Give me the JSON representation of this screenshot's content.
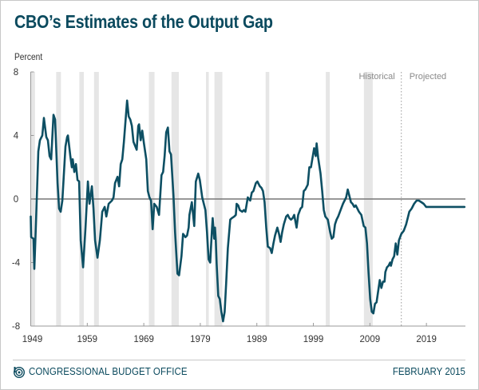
{
  "header": {
    "title": "CBO’s Estimates of the Output Gap",
    "unit_label": "Percent"
  },
  "footer": {
    "organization": "CONGRESSIONAL BUDGET OFFICE",
    "date": "FEBRUARY 2015",
    "logo_icon": "cbo-logo-icon"
  },
  "colors": {
    "title": "#0b4a5e",
    "line": "#0d4f63",
    "recession_band": "#e6e6e6",
    "zero_line": "#777777",
    "axis": "#999999",
    "divider": "#999999"
  },
  "chart_data": {
    "type": "line",
    "title": "CBO’s Estimates of the Output Gap",
    "xlabel": "",
    "ylabel": "Percent",
    "xlim": [
      1949,
      2025.9
    ],
    "ylim": [
      -8,
      8
    ],
    "y_ticks": [
      8,
      4,
      0,
      -4,
      -8
    ],
    "y_tick_labels": [
      "8",
      "4",
      "0",
      "-4",
      "-8"
    ],
    "x_ticks": [
      1949,
      1959,
      1969,
      1979,
      1989,
      1999,
      2009,
      2019
    ],
    "x_tick_labels": [
      "1949",
      "1959",
      "1969",
      "1979",
      "1989",
      "1999",
      "2009",
      "2019"
    ],
    "grid": false,
    "reference_line": 0,
    "divider": {
      "x": 2014.56,
      "left_label": "Historical",
      "right_label": "Projected"
    },
    "recession_bands": [
      [
        1949.0,
        1949.75
      ],
      [
        1953.5,
        1954.35
      ],
      [
        1957.6,
        1958.4
      ],
      [
        1960.2,
        1961.05
      ],
      [
        1969.9,
        1970.9
      ],
      [
        1973.9,
        1975.2
      ],
      [
        1980.0,
        1980.5
      ],
      [
        1981.5,
        1982.9
      ],
      [
        1990.55,
        1991.2
      ],
      [
        2001.2,
        2001.9
      ],
      [
        2007.95,
        2009.5
      ]
    ],
    "series": [
      {
        "name": "Output Gap",
        "points": [
          [
            1949.0,
            -1.1
          ],
          [
            1949.07,
            -2.4
          ],
          [
            1949.5,
            -2.5
          ],
          [
            1949.64,
            -4.4
          ],
          [
            1949.92,
            -1.6
          ],
          [
            1950.34,
            3.0
          ],
          [
            1950.63,
            3.7
          ],
          [
            1951.05,
            4.0
          ],
          [
            1951.33,
            5.1
          ],
          [
            1951.76,
            3.9
          ],
          [
            1952.04,
            3.7
          ],
          [
            1952.33,
            2.7
          ],
          [
            1952.61,
            2.5
          ],
          [
            1953.03,
            5.3
          ],
          [
            1953.31,
            5.0
          ],
          [
            1953.74,
            1.0
          ],
          [
            1954.02,
            -0.6
          ],
          [
            1954.3,
            -0.8
          ],
          [
            1954.59,
            -0.1
          ],
          [
            1955.15,
            3.3
          ],
          [
            1955.44,
            3.9
          ],
          [
            1955.58,
            4.0
          ],
          [
            1956.0,
            2.7
          ],
          [
            1956.28,
            2.0
          ],
          [
            1956.43,
            2.5
          ],
          [
            1956.71,
            1.7
          ],
          [
            1956.99,
            2.2
          ],
          [
            1957.27,
            1.2
          ],
          [
            1957.56,
            1.1
          ],
          [
            1957.84,
            -2.6
          ],
          [
            1958.26,
            -4.3
          ],
          [
            1958.69,
            -1.8
          ],
          [
            1959.11,
            1.1
          ],
          [
            1959.4,
            -0.3
          ],
          [
            1959.82,
            0.8
          ],
          [
            1960.1,
            -0.6
          ],
          [
            1960.39,
            -2.6
          ],
          [
            1960.81,
            -3.7
          ],
          [
            1961.23,
            -2.6
          ],
          [
            1961.66,
            -0.8
          ],
          [
            1962.08,
            -0.5
          ],
          [
            1962.37,
            -1.1
          ],
          [
            1962.79,
            -0.3
          ],
          [
            1963.36,
            -0.1
          ],
          [
            1963.64,
            0.1
          ],
          [
            1963.92,
            1.0
          ],
          [
            1964.35,
            1.4
          ],
          [
            1964.63,
            0.8
          ],
          [
            1964.91,
            2.2
          ],
          [
            1965.2,
            2.5
          ],
          [
            1965.48,
            3.6
          ],
          [
            1965.76,
            4.9
          ],
          [
            1966.04,
            6.2
          ],
          [
            1966.33,
            5.2
          ],
          [
            1966.61,
            5.0
          ],
          [
            1966.89,
            4.6
          ],
          [
            1967.18,
            3.6
          ],
          [
            1967.74,
            3.1
          ],
          [
            1968.02,
            4.6
          ],
          [
            1968.17,
            4.7
          ],
          [
            1968.45,
            3.7
          ],
          [
            1968.73,
            4.3
          ],
          [
            1969.02,
            3.5
          ],
          [
            1969.44,
            2.5
          ],
          [
            1969.72,
            0.5
          ],
          [
            1970.0,
            0.1
          ],
          [
            1970.29,
            -0.1
          ],
          [
            1970.57,
            -1.9
          ],
          [
            1970.85,
            -0.3
          ],
          [
            1971.28,
            -0.5
          ],
          [
            1971.7,
            -1.0
          ],
          [
            1972.13,
            1.5
          ],
          [
            1972.41,
            1.7
          ],
          [
            1972.69,
            2.7
          ],
          [
            1972.97,
            4.2
          ],
          [
            1973.26,
            4.5
          ],
          [
            1973.54,
            3.0
          ],
          [
            1973.82,
            2.8
          ],
          [
            1974.25,
            0.2
          ],
          [
            1974.53,
            -2.1
          ],
          [
            1974.96,
            -4.7
          ],
          [
            1975.24,
            -4.8
          ],
          [
            1975.66,
            -3.6
          ],
          [
            1975.95,
            -2.2
          ],
          [
            1976.37,
            -2.4
          ],
          [
            1976.65,
            -2.3
          ],
          [
            1976.93,
            -1.8
          ],
          [
            1977.08,
            -1.0
          ],
          [
            1977.5,
            -0.2
          ],
          [
            1977.92,
            -1.7
          ],
          [
            1978.21,
            1.1
          ],
          [
            1978.63,
            1.6
          ],
          [
            1978.91,
            1.2
          ],
          [
            1979.34,
            0.1
          ],
          [
            1979.9,
            -0.7
          ],
          [
            1980.19,
            -2.1
          ],
          [
            1980.47,
            -3.8
          ],
          [
            1980.75,
            -4.0
          ],
          [
            1981.04,
            -2.0
          ],
          [
            1981.18,
            -1.2
          ],
          [
            1981.46,
            -2.5
          ],
          [
            1981.6,
            -1.8
          ],
          [
            1981.74,
            -2.6
          ],
          [
            1981.89,
            -4.1
          ],
          [
            1982.17,
            -6.1
          ],
          [
            1982.45,
            -6.3
          ],
          [
            1982.73,
            -7.1
          ],
          [
            1983.02,
            -7.7
          ],
          [
            1983.3,
            -7.1
          ],
          [
            1983.58,
            -5.3
          ],
          [
            1983.87,
            -3.1
          ],
          [
            1984.29,
            -1.3
          ],
          [
            1984.57,
            -1.2
          ],
          [
            1985.0,
            -1.1
          ],
          [
            1985.28,
            -1.0
          ],
          [
            1985.42,
            -0.3
          ],
          [
            1985.71,
            -0.4
          ],
          [
            1985.99,
            -0.7
          ],
          [
            1986.41,
            -0.8
          ],
          [
            1986.7,
            -0.7
          ],
          [
            1986.98,
            -0.8
          ],
          [
            1987.4,
            0.1
          ],
          [
            1987.83,
            -0.1
          ],
          [
            1988.11,
            0.4
          ],
          [
            1988.39,
            0.5
          ],
          [
            1988.82,
            1.0
          ],
          [
            1989.1,
            1.1
          ],
          [
            1989.53,
            0.8
          ],
          [
            1989.81,
            0.7
          ],
          [
            1990.09,
            0.5
          ],
          [
            1990.37,
            -0.2
          ],
          [
            1990.66,
            -1.8
          ],
          [
            1990.94,
            -3.0
          ],
          [
            1991.36,
            -3.1
          ],
          [
            1991.64,
            -3.4
          ],
          [
            1991.93,
            -2.8
          ],
          [
            1992.21,
            -2.3
          ],
          [
            1992.63,
            -1.8
          ],
          [
            1992.92,
            -2.2
          ],
          [
            1993.2,
            -2.7
          ],
          [
            1993.48,
            -2.1
          ],
          [
            1993.77,
            -1.6
          ],
          [
            1994.19,
            -1.1
          ],
          [
            1994.47,
            -1.0
          ],
          [
            1994.76,
            -1.2
          ],
          [
            1995.04,
            -1.3
          ],
          [
            1995.32,
            -1.2
          ],
          [
            1995.61,
            -1.0
          ],
          [
            1996.03,
            -1.8
          ],
          [
            1996.31,
            -1.0
          ],
          [
            1996.74,
            -0.6
          ],
          [
            1997.02,
            -0.5
          ],
          [
            1997.3,
            0.5
          ],
          [
            1997.58,
            0.6
          ],
          [
            1998.01,
            0.9
          ],
          [
            1998.29,
            2.0
          ],
          [
            1998.57,
            2.0
          ],
          [
            1998.86,
            2.6
          ],
          [
            1999.14,
            3.2
          ],
          [
            1999.42,
            2.7
          ],
          [
            1999.57,
            3.5
          ],
          [
            1999.85,
            2.6
          ],
          [
            2000.27,
            1.6
          ],
          [
            2000.56,
            0.5
          ],
          [
            2000.84,
            -0.7
          ],
          [
            2001.12,
            -1.1
          ],
          [
            2001.55,
            -1.3
          ],
          [
            2001.97,
            -2.1
          ],
          [
            2002.25,
            -2.5
          ],
          [
            2002.54,
            -2.4
          ],
          [
            2002.82,
            -1.6
          ],
          [
            2003.1,
            -1.3
          ],
          [
            2003.39,
            -1.1
          ],
          [
            2003.81,
            -0.7
          ],
          [
            2004.23,
            -0.3
          ],
          [
            2004.52,
            -0.1
          ],
          [
            2004.8,
            0.1
          ],
          [
            2005.08,
            0.6
          ],
          [
            2005.37,
            0.2
          ],
          [
            2005.65,
            -0.2
          ],
          [
            2005.93,
            -0.3
          ],
          [
            2006.22,
            -0.5
          ],
          [
            2006.5,
            -0.4
          ],
          [
            2006.78,
            -0.6
          ],
          [
            2007.06,
            -0.8
          ],
          [
            2007.49,
            -1.0
          ],
          [
            2007.91,
            -1.7
          ],
          [
            2008.2,
            -1.8
          ],
          [
            2008.48,
            -2.8
          ],
          [
            2008.76,
            -4.6
          ],
          [
            2009.05,
            -6.3
          ],
          [
            2009.33,
            -7.1
          ],
          [
            2009.61,
            -7.2
          ],
          [
            2009.9,
            -6.6
          ],
          [
            2010.18,
            -6.5
          ],
          [
            2010.46,
            -5.8
          ],
          [
            2010.74,
            -5.1
          ],
          [
            2011.03,
            -5.6
          ],
          [
            2011.31,
            -5.2
          ],
          [
            2011.59,
            -5.2
          ],
          [
            2011.73,
            -4.6
          ],
          [
            2012.02,
            -4.3
          ],
          [
            2012.3,
            -4.2
          ],
          [
            2012.58,
            -4.0
          ],
          [
            2012.72,
            -4.2
          ],
          [
            2013.0,
            -3.8
          ],
          [
            2013.29,
            -3.6
          ],
          [
            2013.57,
            -2.8
          ],
          [
            2013.85,
            -3.5
          ],
          [
            2014.14,
            -2.6
          ],
          [
            2014.56,
            -2.2
          ],
          [
            2014.98,
            -2.0
          ],
          [
            2015.41,
            -1.6
          ],
          [
            2015.69,
            -1.2
          ],
          [
            2015.97,
            -0.8
          ],
          [
            2016.4,
            -0.6
          ],
          [
            2016.82,
            -0.3
          ],
          [
            2017.25,
            -0.1
          ],
          [
            2017.67,
            -0.1
          ],
          [
            2018.1,
            -0.2
          ],
          [
            2018.52,
            -0.3
          ],
          [
            2018.95,
            -0.5
          ],
          [
            2019.51,
            -0.5
          ],
          [
            2025.73,
            -0.5
          ]
        ]
      }
    ]
  }
}
